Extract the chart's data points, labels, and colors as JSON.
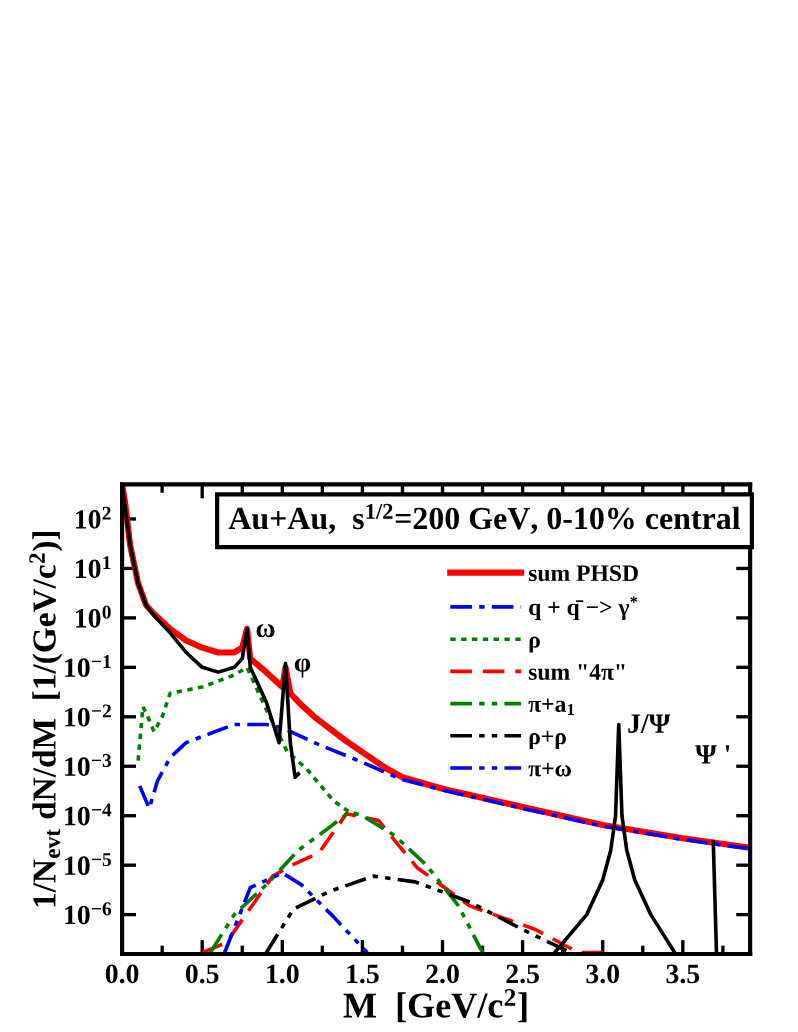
{
  "chart_data": {
    "type": "line",
    "xlabel": "M  [GeV/c$^{2}$]",
    "ylabel": "1/N$_{evt}$ dN/dM  [1/(GeV/c$^{2}$)]",
    "log": "y",
    "xlim": [
      0,
      3.92
    ],
    "ylim": [
      1.6e-07,
      500
    ],
    "xticks": [
      {
        "value": 0,
        "label": "0.0"
      },
      {
        "value": 0.5,
        "label": "0.5"
      },
      {
        "value": 1,
        "label": "1.0"
      },
      {
        "value": 1.5,
        "label": "1.5"
      },
      {
        "value": 2,
        "label": "2.0"
      },
      {
        "value": 2.5,
        "label": "2.5"
      },
      {
        "value": 3,
        "label": "3.0"
      },
      {
        "value": 3.5,
        "label": "3.5"
      }
    ],
    "yticks": [
      {
        "value": 1e-06,
        "label": "10$^{−6}$"
      },
      {
        "value": 1e-05,
        "label": "10$^{−5}$"
      },
      {
        "value": 0.0001,
        "label": "10$^{−4}$"
      },
      {
        "value": 0.001,
        "label": "10$^{−3}$"
      },
      {
        "value": 0.01,
        "label": "10$^{−2}$"
      },
      {
        "value": 0.1,
        "label": "10$^{−1}$"
      },
      {
        "value": 1,
        "label": "10$^{0}$"
      },
      {
        "value": 10,
        "label": "10$^{1}$"
      },
      {
        "value": 100,
        "label": "10$^{2}$"
      }
    ],
    "grid": false,
    "legend": "right",
    "marker": "none",
    "annotations": [
      "Au+Au,  s$^{1/2}$=200 GeV, 0-10% central",
      {
        "text": "ω",
        "x": 0.78,
        "y": 0.6
      },
      {
        "text": "φ",
        "x": 1.02,
        "y": 0.12
      },
      {
        "text": "J/Ψ",
        "x": 3.1,
        "y": 0.007
      },
      {
        "text": "Ψ '",
        "x": 3.69,
        "y": 3e-05
      }
    ],
    "series": [
      {
        "name": "sum PHSD",
        "color": "#ff0000",
        "line_style": "solid",
        "x": [
          0,
          0.02,
          0.05,
          0.1,
          0.15,
          0.2,
          0.3,
          0.4,
          0.5,
          0.6,
          0.7,
          0.75,
          0.78,
          0.8,
          0.9,
          1.0,
          1.02,
          1.05,
          1.1,
          1.2,
          1.4,
          1.65,
          1.75,
          2.0,
          2.5,
          3.0,
          3.5,
          3.9
        ],
        "values": [
          500,
          200,
          30,
          5,
          1.8,
          1.2,
          0.6,
          0.35,
          0.25,
          0.2,
          0.2,
          0.25,
          0.6,
          0.15,
          0.08,
          0.04,
          0.1,
          0.03,
          0.02,
          0.01,
          0.0032,
          0.0009,
          0.0006,
          0.00035,
          0.00015,
          6.5e-05,
          3.5e-05,
          2.3e-05
        ]
      },
      {
        "name": "q + q̄ −> γ$^{*}$",
        "color": "#0000ff",
        "line_style": "dashdot",
        "x": [
          0.11,
          0.17,
          0.22,
          0.3,
          0.4,
          0.5,
          0.7,
          0.9,
          1.0,
          1.2,
          1.5,
          1.74,
          2.0,
          2.5,
          3.0,
          3.5,
          3.9
        ],
        "values": [
          0.0004,
          0.00014,
          0.0005,
          0.0015,
          0.003,
          0.004,
          0.007,
          0.007,
          0.006,
          0.003,
          0.0012,
          0.00055,
          0.00033,
          0.00014,
          6.2e-05,
          3.3e-05,
          2.2e-05
        ]
      },
      {
        "name": "ρ",
        "color": "#008000",
        "line_style": "dotted",
        "x": [
          0.1,
          0.13,
          0.15,
          0.2,
          0.25,
          0.3,
          0.5,
          0.7,
          0.78,
          0.9,
          1.03,
          1.15,
          1.32,
          1.45
        ],
        "values": [
          0.0013,
          0.016,
          0.012,
          0.005,
          0.01,
          0.03,
          0.04,
          0.07,
          0.1,
          0.014,
          0.002,
          0.0009,
          0.0002,
          0.0001
        ]
      },
      {
        "name": "sum \"4π\"",
        "color": "#ff0000",
        "line_style": "dashed",
        "x": [
          0.5,
          0.65,
          0.94,
          1.06,
          1.23,
          1.4,
          1.6,
          1.84,
          2.17,
          2.58,
          2.85,
          3.0
        ],
        "values": [
          1.7e-07,
          2.7e-07,
          6e-06,
          1e-05,
          1.8e-05,
          0.00011,
          8e-05,
          9e-06,
          1.5e-06,
          5e-07,
          1.7e-07,
          1.7e-07
        ]
      },
      {
        "name": "π+a$_{1}$",
        "color": "#008000",
        "line_style": "dashdotdot",
        "x": [
          0.55,
          0.7,
          0.9,
          1.1,
          1.3,
          1.42,
          1.5,
          1.7,
          1.9,
          2.1,
          2.25
        ],
        "values": [
          1.7e-07,
          1e-06,
          4e-06,
          2e-05,
          6e-05,
          0.00012,
          0.0001,
          4e-05,
          1e-05,
          1.5e-06,
          1.7e-07
        ]
      },
      {
        "name": "ρ+ρ",
        "color": "#000000",
        "line_style": "dashdotdot",
        "x": [
          0.9,
          1.07,
          1.3,
          1.57,
          1.83,
          2.17,
          2.5,
          2.8
        ],
        "values": [
          1.7e-07,
          1.3e-06,
          3e-06,
          6e-06,
          4.6e-06,
          1.8e-06,
          5e-07,
          1.7e-07
        ]
      },
      {
        "name": "π+ω",
        "color": "#0000ff",
        "line_style": "dashdotdot",
        "x": [
          0.64,
          0.8,
          1.0,
          1.12,
          1.32,
          1.53
        ],
        "values": [
          1.7e-07,
          3.5e-06,
          7e-06,
          4e-06,
          9e-07,
          1.7e-07
        ]
      },
      {
        "color": "#000000",
        "line_style": "solid",
        "x": [
          0,
          0.05,
          0.1,
          0.15,
          0.2,
          0.3,
          0.4,
          0.5,
          0.6,
          0.7,
          0.75,
          0.78,
          0.8,
          0.9,
          0.98,
          1.02,
          1.05,
          1.08,
          1.1
        ],
        "values": [
          500,
          30,
          5,
          1.8,
          1.1,
          0.5,
          0.2,
          0.1,
          0.08,
          0.1,
          0.15,
          0.6,
          0.1,
          0.02,
          0.003,
          0.12,
          0.003,
          0.0006,
          0.0007
        ]
      },
      {
        "color": "#000000",
        "line_style": "solid",
        "x": [
          2.7,
          2.9,
          3.0,
          3.05,
          3.08,
          3.1,
          3.12,
          3.15,
          3.2,
          3.3,
          3.45,
          3.67,
          3.69,
          3.71
        ],
        "values": [
          1.7e-07,
          1e-06,
          5e-06,
          2e-05,
          0.0001,
          0.007,
          0.0001,
          2e-05,
          5e-06,
          1e-06,
          1.7e-07,
          null,
          3e-05,
          1.7e-07
        ]
      }
    ]
  }
}
